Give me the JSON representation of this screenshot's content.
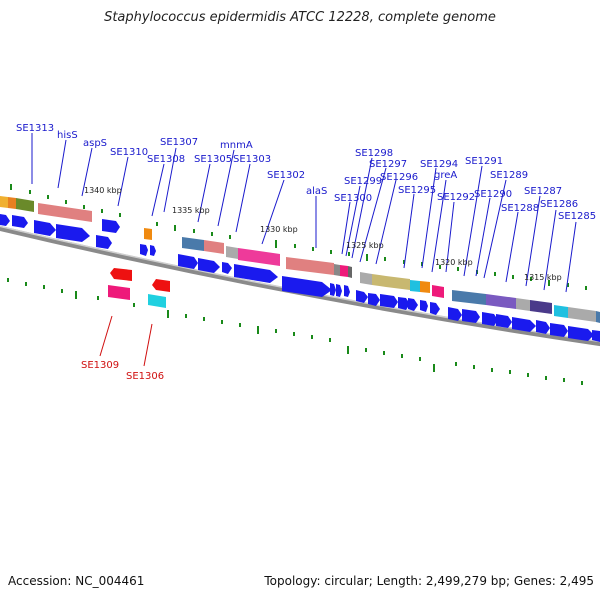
{
  "title": "Staphylococcus epidermidis ATCC 12228, complete genome",
  "accession": "Accession: NC_004461",
  "topology": "Topology: circular; Length: 2,499,279 bp; Genes: 2,495",
  "colors": {
    "forward_cds": "#1a1aee",
    "reverse_cds": "#ee1111",
    "gene_label": "#1a1acc",
    "reverse_label": "#d01010",
    "tick": "#1a8a1a",
    "backbone": "#888888"
  },
  "kbp_ticks": [
    {
      "text": "1340 kbp"
    },
    {
      "text": "1335 kbp"
    },
    {
      "text": "1330 kbp"
    },
    {
      "text": "1325 kbp"
    },
    {
      "text": "1320 kbp"
    },
    {
      "text": "1315 kbp"
    }
  ],
  "gene_labels": [
    {
      "text": "SE1313"
    },
    {
      "text": "hisS"
    },
    {
      "text": "aspS"
    },
    {
      "text": "SE1310"
    },
    {
      "text": "SE1307"
    },
    {
      "text": "SE1308"
    },
    {
      "text": "mnmA"
    },
    {
      "text": "SE1305"
    },
    {
      "text": "SE1303"
    },
    {
      "text": "SE1302"
    },
    {
      "text": "alaS"
    },
    {
      "text": "SE1298"
    },
    {
      "text": "SE1297"
    },
    {
      "text": "SE1299"
    },
    {
      "text": "SE1296"
    },
    {
      "text": "SE1300"
    },
    {
      "text": "SE1294"
    },
    {
      "text": "greA"
    },
    {
      "text": "SE1295"
    },
    {
      "text": "SE1292"
    },
    {
      "text": "SE1291"
    },
    {
      "text": "SE1289"
    },
    {
      "text": "SE1290"
    },
    {
      "text": "SE1288"
    },
    {
      "text": "SE1287"
    },
    {
      "text": "SE1286"
    },
    {
      "text": "SE1285"
    }
  ],
  "reverse_labels": [
    {
      "text": "SE1309"
    },
    {
      "text": "SE1306"
    }
  ]
}
